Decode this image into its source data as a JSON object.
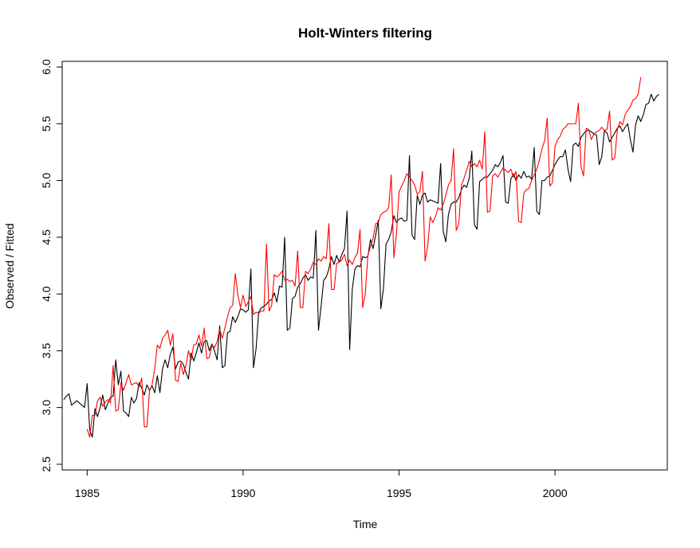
{
  "chart_data": {
    "type": "line",
    "title": "Holt-Winters filtering",
    "xlabel": "Time",
    "ylabel": "Observed / Fitted",
    "xlim": [
      1984.2,
      2003.6
    ],
    "ylim": [
      2.45,
      6.05
    ],
    "x_ticks": [
      1985,
      1990,
      1995,
      2000
    ],
    "y_ticks": [
      2.5,
      3.0,
      3.5,
      4.0,
      4.5,
      5.0,
      5.5,
      6.0
    ],
    "x_tick_labels": [
      "1985",
      "1990",
      "1995",
      "2000"
    ],
    "y_tick_labels": [
      "2.5",
      "3.0",
      "3.5",
      "4.0",
      "4.5",
      "5.0",
      "5.5",
      "6.0"
    ],
    "grid": false,
    "legend": "none",
    "series": [
      {
        "color": "#000000",
        "x_start": 1984.25,
        "x_step": 0.08333,
        "values": [
          3.07,
          3.1,
          3.12,
          3.02,
          3.04,
          3.06,
          3.04,
          3.02,
          3.0,
          3.21,
          2.8,
          2.74,
          2.99,
          2.92,
          3.0,
          3.11,
          2.98,
          3.04,
          3.09,
          3.1,
          3.42,
          3.2,
          3.32,
          2.97,
          2.95,
          2.92,
          3.09,
          3.04,
          3.08,
          3.22,
          3.17,
          3.11,
          3.2,
          3.15,
          3.19,
          3.13,
          3.28,
          3.13,
          3.34,
          3.42,
          3.35,
          3.47,
          3.53,
          3.34,
          3.4,
          3.41,
          3.38,
          3.31,
          3.25,
          3.48,
          3.41,
          3.48,
          3.57,
          3.48,
          3.58,
          3.59,
          3.5,
          3.56,
          3.5,
          3.42,
          3.72,
          3.35,
          3.37,
          3.66,
          3.67,
          3.8,
          3.75,
          3.8,
          3.87,
          3.86,
          3.84,
          3.86,
          4.22,
          3.35,
          3.52,
          3.84,
          3.88,
          3.89,
          3.91,
          3.94,
          3.95,
          4.01,
          3.93,
          4.07,
          4.06,
          4.5,
          3.68,
          3.7,
          3.96,
          3.98,
          4.06,
          4.09,
          4.14,
          4.17,
          4.12,
          4.15,
          4.14,
          4.56,
          3.68,
          3.89,
          4.12,
          4.15,
          4.22,
          4.33,
          4.26,
          4.34,
          4.28,
          4.35,
          4.4,
          4.73,
          3.51,
          4.04,
          4.22,
          4.25,
          4.24,
          4.33,
          4.32,
          4.33,
          4.48,
          4.4,
          4.52,
          4.65,
          3.87,
          4.05,
          4.44,
          4.48,
          4.55,
          4.69,
          4.63,
          4.66,
          4.67,
          4.64,
          4.65,
          5.22,
          4.52,
          4.48,
          4.87,
          4.79,
          4.87,
          4.89,
          4.81,
          4.83,
          4.82,
          4.81,
          4.8,
          5.15,
          4.55,
          4.46,
          4.7,
          4.79,
          4.81,
          4.81,
          4.85,
          4.92,
          4.96,
          4.94,
          5.02,
          5.26,
          4.61,
          4.57,
          4.99,
          5.01,
          5.03,
          5.03,
          5.06,
          5.09,
          5.14,
          5.12,
          5.16,
          5.22,
          4.81,
          4.8,
          5.01,
          5.06,
          5.0,
          5.05,
          5.02,
          5.08,
          5.03,
          5.04,
          5.01,
          5.29,
          4.73,
          4.7,
          5.0,
          5.0,
          5.03,
          5.04,
          5.09,
          5.14,
          5.18,
          5.21,
          5.21,
          5.27,
          5.1,
          4.99,
          5.31,
          5.33,
          5.3,
          5.38,
          5.41,
          5.44,
          5.44,
          5.43,
          5.41,
          5.4,
          5.14,
          5.21,
          5.44,
          5.42,
          5.34,
          5.38,
          5.42,
          5.46,
          5.48,
          5.43,
          5.47,
          5.5,
          5.36,
          5.25,
          5.49,
          5.57,
          5.52,
          5.58,
          5.67,
          5.68,
          5.76,
          5.7,
          5.74,
          5.76
        ]
      },
      {
        "color": "#ff0000",
        "x_start": 1985.0,
        "x_step": 0.08333,
        "values": [
          2.81,
          2.74,
          2.93,
          2.93,
          3.06,
          3.09,
          3.01,
          3.05,
          3.07,
          3.04,
          3.37,
          2.97,
          2.98,
          3.22,
          3.15,
          3.22,
          3.29,
          3.2,
          3.21,
          3.22,
          3.18,
          3.26,
          2.83,
          2.83,
          3.15,
          3.2,
          3.34,
          3.55,
          3.52,
          3.61,
          3.64,
          3.68,
          3.55,
          3.65,
          3.24,
          3.23,
          3.39,
          3.29,
          3.37,
          3.5,
          3.42,
          3.55,
          3.56,
          3.64,
          3.54,
          3.7,
          3.43,
          3.44,
          3.55,
          3.53,
          3.58,
          3.69,
          3.61,
          3.7,
          3.8,
          3.88,
          3.9,
          4.18,
          3.99,
          3.88,
          3.99,
          3.89,
          3.93,
          3.98,
          3.82,
          3.84,
          3.83,
          3.85,
          3.85,
          4.44,
          3.85,
          3.9,
          4.17,
          4.15,
          4.17,
          4.2,
          4.12,
          4.13,
          4.11,
          4.12,
          4.07,
          4.38,
          3.88,
          3.88,
          4.2,
          4.18,
          4.22,
          4.28,
          4.26,
          4.31,
          4.29,
          4.33,
          4.31,
          4.62,
          4.04,
          4.04,
          4.27,
          4.28,
          4.3,
          4.35,
          4.25,
          4.3,
          4.26,
          4.32,
          4.36,
          4.57,
          3.88,
          4.0,
          4.34,
          4.42,
          4.49,
          4.62,
          4.63,
          4.7,
          4.72,
          4.73,
          4.76,
          5.05,
          4.32,
          4.53,
          4.9,
          4.95,
          5.0,
          5.06,
          5.03,
          5.0,
          4.96,
          4.88,
          4.9,
          5.08,
          4.29,
          4.42,
          4.68,
          4.63,
          4.68,
          4.76,
          4.74,
          4.79,
          4.87,
          4.96,
          5.0,
          5.28,
          4.56,
          4.62,
          4.96,
          5.02,
          5.09,
          5.17,
          5.12,
          5.15,
          5.12,
          5.18,
          5.1,
          5.43,
          4.72,
          4.73,
          5.04,
          5.06,
          5.03,
          5.07,
          5.11,
          5.09,
          5.07,
          5.1,
          5.03,
          5.08,
          4.64,
          4.63,
          4.89,
          4.92,
          4.93,
          5.0,
          5.05,
          5.1,
          5.18,
          5.28,
          5.35,
          5.55,
          4.95,
          4.98,
          5.3,
          5.36,
          5.39,
          5.45,
          5.47,
          5.5,
          5.5,
          5.5,
          5.5,
          5.68,
          5.12,
          5.04,
          5.46,
          5.45,
          5.36,
          5.41,
          5.43,
          5.44,
          5.47,
          5.44,
          5.45,
          5.61,
          5.18,
          5.2,
          5.45,
          5.52,
          5.49,
          5.58,
          5.62,
          5.65,
          5.71,
          5.72,
          5.76,
          5.91
        ]
      }
    ]
  }
}
